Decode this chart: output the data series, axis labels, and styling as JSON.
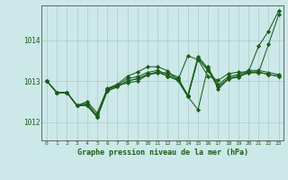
{
  "title": "Graphe pression niveau de la mer (hPa)",
  "background_color": "#cce8e8",
  "grid_color": "#aacaca",
  "line_color": "#1a5c1a",
  "marker_color": "#1a5c1a",
  "xlim": [
    -0.5,
    23.5
  ],
  "ylim": [
    1011.55,
    1014.85
  ],
  "xticks": [
    0,
    1,
    2,
    3,
    4,
    5,
    6,
    7,
    8,
    9,
    10,
    11,
    12,
    13,
    14,
    15,
    16,
    17,
    18,
    19,
    20,
    21,
    22,
    23
  ],
  "yticks": [
    1012,
    1013,
    1014
  ],
  "series": [
    [
      1013.0,
      1012.72,
      1012.72,
      1012.4,
      1012.4,
      1012.12,
      1012.8,
      1012.9,
      1012.95,
      1013.0,
      1013.15,
      1013.2,
      1013.2,
      1013.1,
      1012.62,
      1012.3,
      1013.35,
      1012.8,
      1013.05,
      1013.1,
      1013.2,
      1013.2,
      1013.9,
      1014.62
    ],
    [
      1013.0,
      1012.72,
      1012.72,
      1012.4,
      1012.5,
      1012.22,
      1012.82,
      1012.92,
      1013.12,
      1013.22,
      1013.35,
      1013.35,
      1013.25,
      1013.02,
      1013.62,
      1013.52,
      1013.12,
      1013.02,
      1013.18,
      1013.22,
      1013.22,
      1013.85,
      1014.22,
      1014.72
    ],
    [
      1013.0,
      1012.72,
      1012.72,
      1012.4,
      1012.4,
      1012.12,
      1012.76,
      1012.86,
      1013.0,
      1013.06,
      1013.16,
      1013.22,
      1013.12,
      1013.02,
      1012.62,
      1013.55,
      1013.26,
      1012.86,
      1013.06,
      1013.12,
      1013.22,
      1013.22,
      1013.16,
      1013.12
    ],
    [
      1013.0,
      1012.72,
      1012.72,
      1012.4,
      1012.46,
      1012.16,
      1012.79,
      1012.89,
      1013.06,
      1013.11,
      1013.21,
      1013.26,
      1013.16,
      1013.06,
      1012.66,
      1013.6,
      1013.31,
      1012.91,
      1013.11,
      1013.16,
      1013.26,
      1013.26,
      1013.21,
      1013.16
    ],
    [
      1013.0,
      1012.72,
      1012.72,
      1012.4,
      1012.42,
      1012.12,
      1012.76,
      1012.86,
      1013.0,
      1013.06,
      1013.16,
      1013.22,
      1013.12,
      1013.02,
      1012.62,
      1013.55,
      1013.26,
      1012.86,
      1013.06,
      1013.12,
      1013.22,
      1013.22,
      1013.16,
      1013.12
    ]
  ]
}
